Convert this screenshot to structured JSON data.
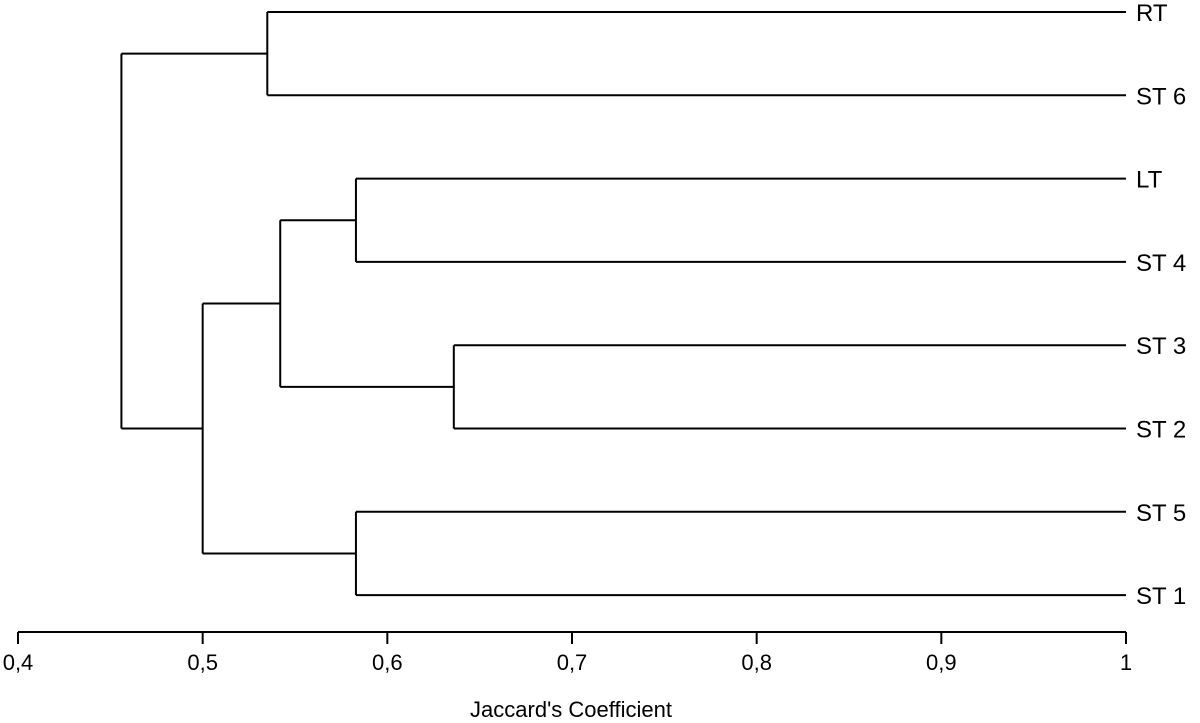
{
  "chart_data": {
    "type": "dendrogram",
    "title": "",
    "xlabel": "Jaccard's Coefficient",
    "xlim": [
      0.4,
      1.0
    ],
    "x_ticks": [
      "0,4",
      "0,5",
      "0,6",
      "0,7",
      "0,8",
      "0,9",
      "1"
    ],
    "x_tick_values": [
      0.4,
      0.5,
      0.6,
      0.7,
      0.8,
      0.9,
      1.0
    ],
    "leaves": [
      "RT",
      "ST 6",
      "LT",
      "ST 4",
      "ST 3",
      "ST 2",
      "ST 5",
      "ST 1"
    ],
    "merges": [
      {
        "id": "c_rt_st6",
        "children": [
          "RT",
          "ST 6"
        ],
        "similarity": 0.535
      },
      {
        "id": "c_lt_st4",
        "children": [
          "LT",
          "ST 4"
        ],
        "similarity": 0.583
      },
      {
        "id": "c_st3_st2",
        "children": [
          "ST 3",
          "ST 2"
        ],
        "similarity": 0.636
      },
      {
        "id": "c_st5_st1",
        "children": [
          "ST 5",
          "ST 1"
        ],
        "similarity": 0.583
      },
      {
        "id": "c_mid",
        "children": [
          "c_lt_st4",
          "c_st3_st2"
        ],
        "similarity": 0.542
      },
      {
        "id": "c_low",
        "children": [
          "c_mid",
          "c_st5_st1"
        ],
        "similarity": 0.5
      },
      {
        "id": "c_root",
        "children": [
          "c_rt_st6",
          "c_low"
        ],
        "similarity": 0.456
      }
    ],
    "colors": {
      "lines": "#000000",
      "background": "#ffffff"
    }
  }
}
